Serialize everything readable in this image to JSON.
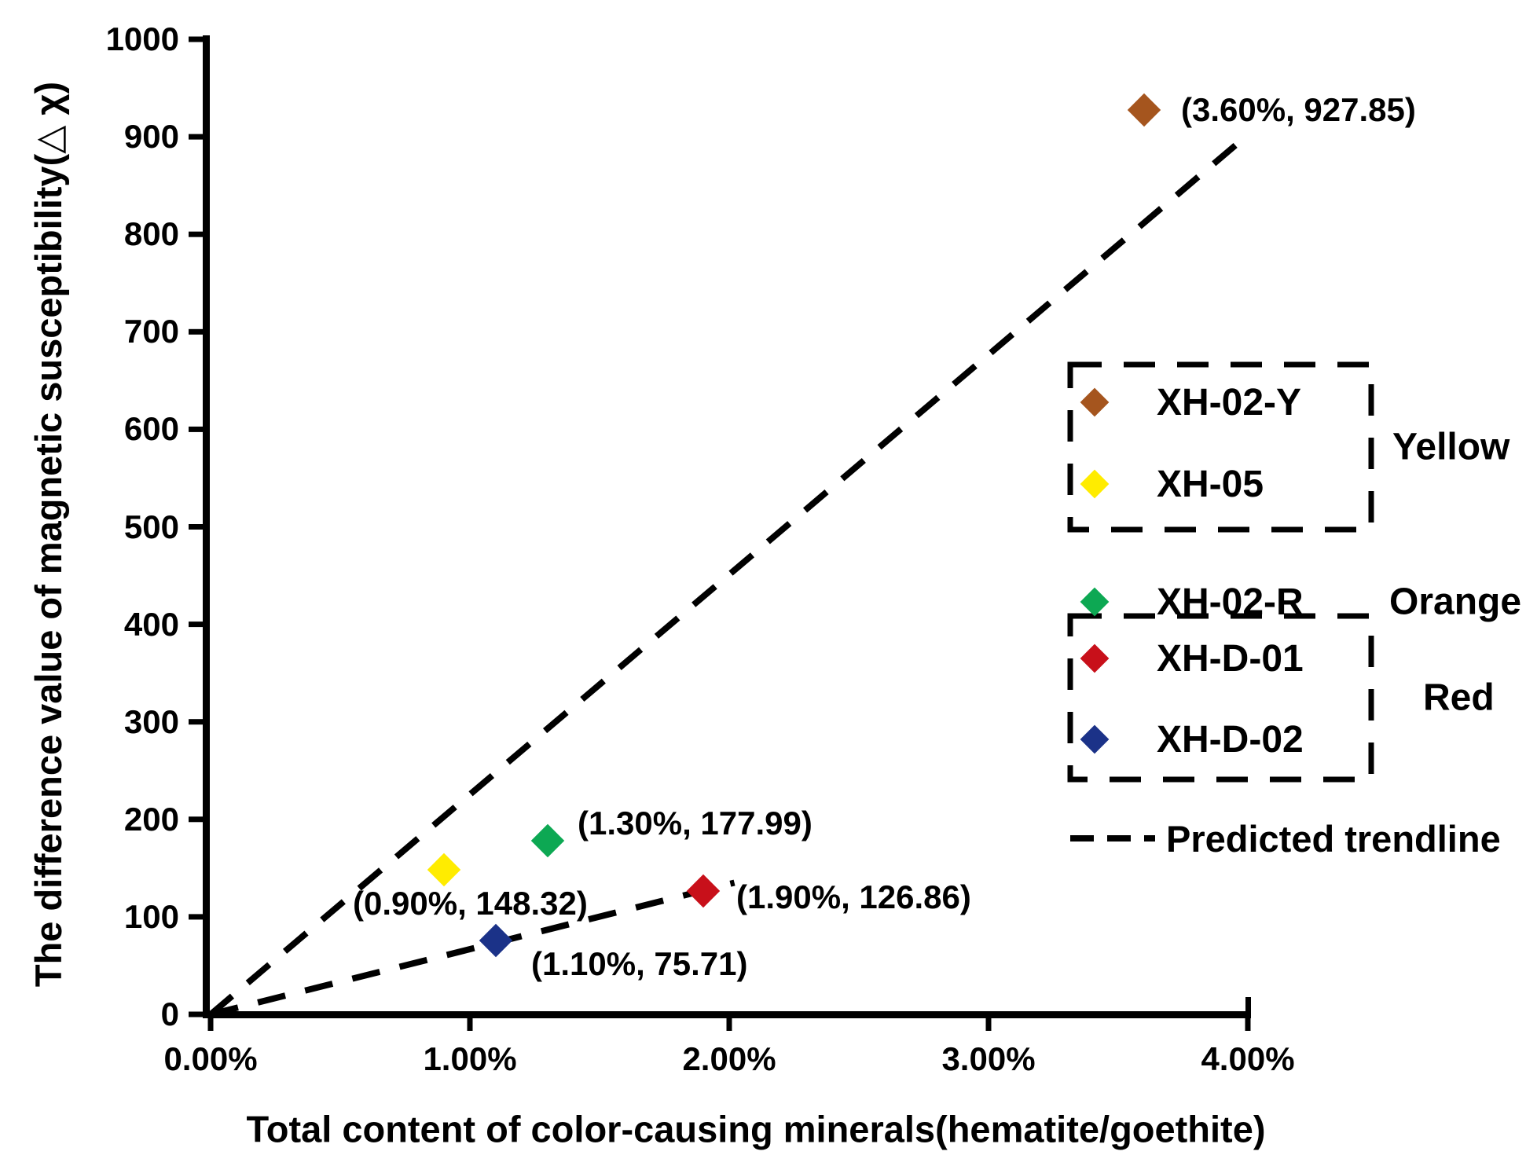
{
  "page": {
    "background": "#FFFFFF",
    "text_color": "#000000"
  },
  "chart_data": {
    "type": "scatter",
    "title": "",
    "xlabel": "Total content of color-causing minerals(hematite/goethite)",
    "ylabel": "The difference value of magnetic susceptibility(△ χ)",
    "xlim": [
      0,
      4
    ],
    "ylim": [
      0,
      1000
    ],
    "x_tick_labels": [
      "0.00%",
      "1.00%",
      "2.00%",
      "3.00%",
      "4.00%"
    ],
    "x_tick_values": [
      0,
      1,
      2,
      3,
      4
    ],
    "y_tick_labels": [
      "0",
      "100",
      "200",
      "300",
      "400",
      "500",
      "600",
      "700",
      "800",
      "900",
      "1000"
    ],
    "y_tick_values": [
      0,
      100,
      200,
      300,
      400,
      500,
      600,
      700,
      800,
      900,
      1000
    ],
    "grid": false,
    "legend_position": "right-middle",
    "marker": "diamond",
    "series": [
      {
        "name": "XH-02-Y",
        "group": "Yellow",
        "color": "#A5551E",
        "points": [
          {
            "x": 3.6,
            "y": 927.85,
            "label": "(3.60%, 927.85)"
          }
        ]
      },
      {
        "name": "XH-05",
        "group": "Yellow",
        "color": "#FFEC00",
        "points": [
          {
            "x": 0.9,
            "y": 148.32,
            "label": "(0.90%, 148.32)"
          }
        ]
      },
      {
        "name": "XH-02-R",
        "group": "Orange",
        "color": "#0DA853",
        "points": [
          {
            "x": 1.3,
            "y": 177.99,
            "label": "(1.30%, 177.99)"
          }
        ]
      },
      {
        "name": "XH-D-01",
        "group": "Red",
        "color": "#C8101A",
        "points": [
          {
            "x": 1.9,
            "y": 126.86,
            "label": "(1.90%, 126.86)"
          }
        ]
      },
      {
        "name": "XH-D-02",
        "group": "Red",
        "color": "#1B3288",
        "points": [
          {
            "x": 1.1,
            "y": 75.71,
            "label": "(1.10%, 75.71)"
          }
        ]
      }
    ],
    "trendlines": [
      {
        "name": "Predicted trendline",
        "style": "dashed",
        "x1": 0,
        "y1": 0,
        "x2": 3.96,
        "y2": 893
      },
      {
        "name": "Predicted trendline",
        "style": "dashed",
        "x1": 0,
        "y1": 0,
        "x2": 2.02,
        "y2": 135
      }
    ]
  },
  "legend": {
    "groups": [
      {
        "label": "Yellow",
        "boxed": true
      },
      {
        "label": "Orange",
        "boxed": false
      },
      {
        "label": "Red",
        "boxed": true
      }
    ],
    "trendline_label": "Predicted trendline"
  }
}
